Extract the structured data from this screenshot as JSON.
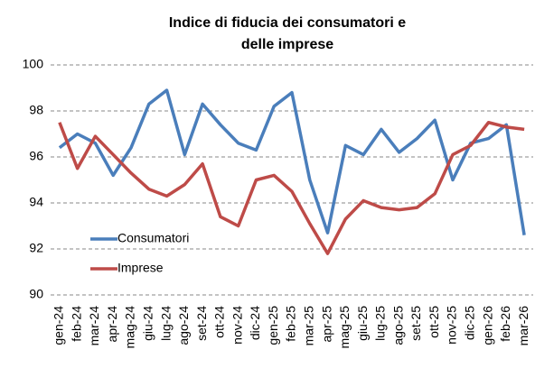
{
  "chart_data": {
    "type": "line",
    "title": [
      "Indice di fiducia dei consumatori e",
      "delle imprese"
    ],
    "categories": [
      "gen-24",
      "feb-24",
      "mar-24",
      "apr-24",
      "mag-24",
      "giu-24",
      "lug-24",
      "ago-24",
      "set-24",
      "ott-24",
      "nov-24",
      "dic-24",
      "gen-25",
      "feb-25",
      "mar-25",
      "apr-25",
      "mag-25",
      "giu-25",
      "lug-25",
      "ago-25",
      "set-25",
      "ott-25",
      "nov-25",
      "dic-25",
      "gen-26",
      "feb-26",
      "mar-26"
    ],
    "series": [
      {
        "name": "Consumatori",
        "color": "#4a7ebb",
        "values": [
          96.4,
          97.0,
          96.6,
          95.2,
          96.4,
          98.3,
          98.9,
          96.1,
          98.3,
          97.4,
          96.6,
          96.3,
          98.2,
          98.8,
          95.0,
          92.7,
          96.5,
          96.1,
          97.2,
          96.2,
          96.8,
          97.6,
          95.0,
          96.6,
          96.8,
          97.4,
          92.6
        ]
      },
      {
        "name": "Imprese",
        "color": "#be4b48",
        "values": [
          97.5,
          95.5,
          96.9,
          96.1,
          95.3,
          94.6,
          94.3,
          94.8,
          95.7,
          93.4,
          93.0,
          95.0,
          95.2,
          94.5,
          93.1,
          91.8,
          93.3,
          94.1,
          93.8,
          93.7,
          93.8,
          94.4,
          96.1,
          96.5,
          97.5,
          97.3,
          97.2
        ]
      }
    ],
    "ylim": [
      90,
      100
    ],
    "yticks": [
      90,
      92,
      94,
      96,
      98,
      100
    ],
    "grid": true,
    "legend": "lower left"
  }
}
